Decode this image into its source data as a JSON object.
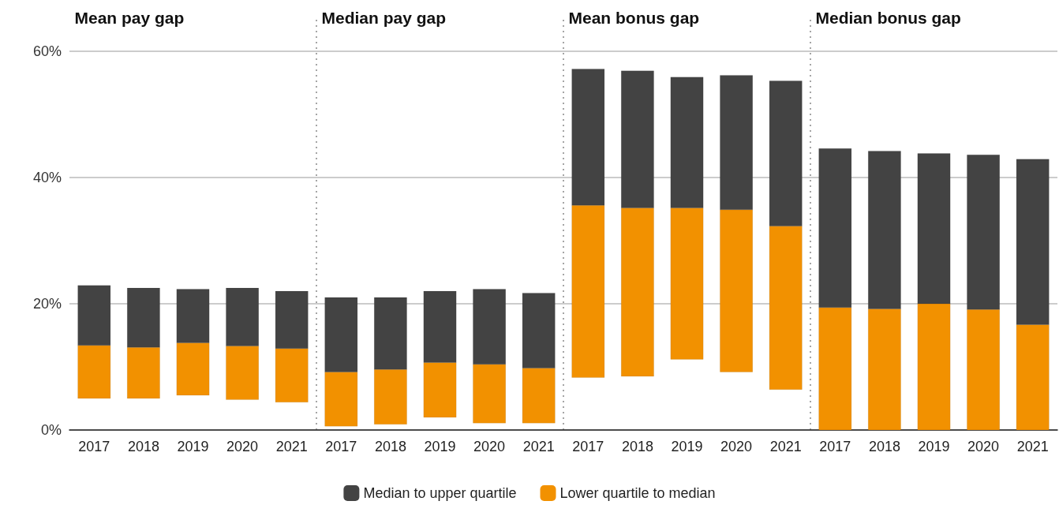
{
  "chart_data": {
    "type": "bar",
    "categories": [
      "2017",
      "2018",
      "2019",
      "2020",
      "2021",
      "2017",
      "2018",
      "2019",
      "2020",
      "2021",
      "2017",
      "2018",
      "2019",
      "2020",
      "2021",
      "2017",
      "2018",
      "2019",
      "2020",
      "2021"
    ],
    "series": [
      {
        "name": "Lower quartile to median",
        "color": "#f29100",
        "base": [
          5.0,
          5.0,
          5.5,
          4.8,
          4.4,
          0.6,
          0.9,
          2.0,
          1.1,
          1.1,
          8.3,
          8.5,
          11.2,
          9.2,
          6.4,
          0,
          0,
          0,
          0,
          0
        ],
        "values": [
          8.4,
          8.1,
          8.3,
          8.5,
          8.5,
          8.6,
          8.7,
          8.7,
          9.3,
          8.7,
          27.3,
          26.7,
          24.0,
          25.7,
          25.9,
          19.4,
          19.2,
          20.0,
          19.1,
          16.7
        ]
      },
      {
        "name": "Median to upper quartile",
        "color": "#434343",
        "base": [
          13.4,
          13.1,
          13.8,
          13.3,
          12.9,
          9.2,
          9.6,
          10.7,
          10.4,
          9.8,
          35.6,
          35.2,
          35.2,
          34.9,
          32.3,
          19.4,
          19.2,
          20.0,
          19.1,
          16.7
        ],
        "values": [
          9.5,
          9.4,
          8.5,
          9.2,
          9.1,
          11.8,
          11.4,
          11.3,
          11.9,
          11.9,
          21.6,
          21.7,
          20.7,
          21.3,
          23.0,
          25.2,
          25.0,
          23.8,
          24.5,
          26.2
        ]
      }
    ],
    "ylim": [
      0,
      60
    ],
    "yticks": [
      {
        "value": 0,
        "label": "0%"
      },
      {
        "value": 20,
        "label": "20%"
      },
      {
        "value": 40,
        "label": "40%"
      },
      {
        "value": 60,
        "label": "60%"
      }
    ],
    "annotations": [
      "Mean pay gap",
      "Median pay gap",
      "Mean bonus gap",
      "Median bonus gap"
    ],
    "grid": "y",
    "legend": "bottom"
  }
}
